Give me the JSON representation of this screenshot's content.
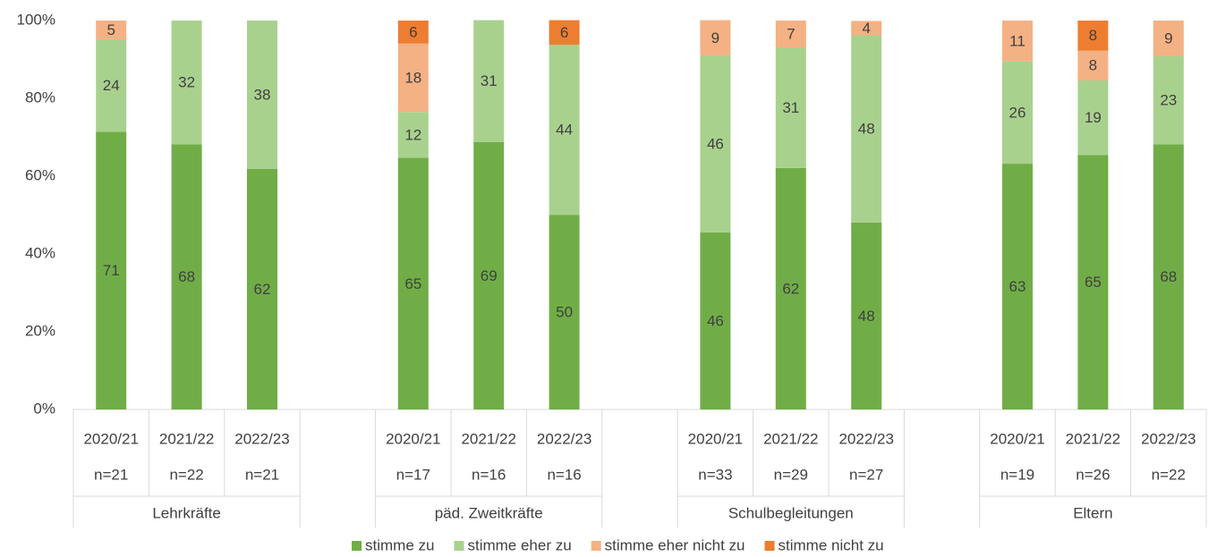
{
  "chart_data": {
    "type": "stacked_bar",
    "categories": [
      "2020/21",
      "2021/22",
      "2022/23",
      null,
      "2020/21",
      "2021/22",
      "2022/23",
      null,
      "2020/21",
      "2021/22",
      "2022/23",
      null,
      "2020/21",
      "2021/22",
      "2022/23"
    ],
    "category_n": [
      "n=21",
      "n=22",
      "n=21",
      null,
      "n=17",
      "n=16",
      "n=16",
      null,
      "n=33",
      "n=29",
      "n=27",
      null,
      "n=19",
      "n=26",
      "n=22"
    ],
    "groups": [
      "Lehrkräfte",
      "päd. Zweitkräfte",
      "Schulbegleitungen",
      "Eltern"
    ],
    "series": [
      {
        "name": "stimme zu",
        "color": "#70ad47",
        "values": [
          71.4,
          68.2,
          61.9,
          null,
          64.7,
          68.8,
          50,
          null,
          45.5,
          62.1,
          48.1,
          null,
          63.2,
          65.4,
          68.2
        ],
        "value_labels": [
          "71",
          "68",
          "62",
          null,
          "65",
          "69",
          "50",
          null,
          "46",
          "62",
          "48",
          null,
          "63",
          "65",
          "68"
        ]
      },
      {
        "name": "stimme eher zu",
        "color": "#a9d18e",
        "values": [
          23.8,
          31.8,
          38.1,
          null,
          11.8,
          31.3,
          43.8,
          null,
          45.5,
          31.0,
          48.1,
          null,
          26.3,
          19.2,
          22.7
        ],
        "value_labels": [
          "24",
          "32",
          "38",
          null,
          "12",
          "31",
          "44",
          null,
          "46",
          "31",
          "48",
          null,
          "26",
          "19",
          "23"
        ]
      },
      {
        "name": "stimme eher nicht zu",
        "color": "#f4b183",
        "values": [
          4.8,
          null,
          null,
          null,
          17.6,
          null,
          null,
          null,
          9.1,
          6.9,
          3.7,
          null,
          10.5,
          7.7,
          9.1
        ],
        "value_labels": [
          "5",
          null,
          null,
          null,
          "18",
          null,
          null,
          null,
          "9",
          "7",
          "4",
          null,
          "11",
          "8",
          "9"
        ]
      },
      {
        "name": "stimme nicht zu",
        "color": "#ed7d31",
        "values": [
          null,
          null,
          null,
          null,
          5.9,
          null,
          6.3,
          null,
          null,
          null,
          null,
          null,
          null,
          7.7,
          null
        ],
        "value_labels": [
          null,
          null,
          null,
          null,
          "6",
          null,
          "6",
          null,
          null,
          null,
          null,
          null,
          null,
          "8",
          null
        ]
      }
    ],
    "ylim": [
      0,
      100
    ],
    "yticks": [
      {
        "value": 0,
        "label": "0%"
      },
      {
        "value": 20,
        "label": "20%"
      },
      {
        "value": 40,
        "label": "40%"
      },
      {
        "value": 60,
        "label": "60%"
      },
      {
        "value": 80,
        "label": "80%"
      },
      {
        "value": 100,
        "label": "100%"
      }
    ],
    "legend": "bottom"
  }
}
